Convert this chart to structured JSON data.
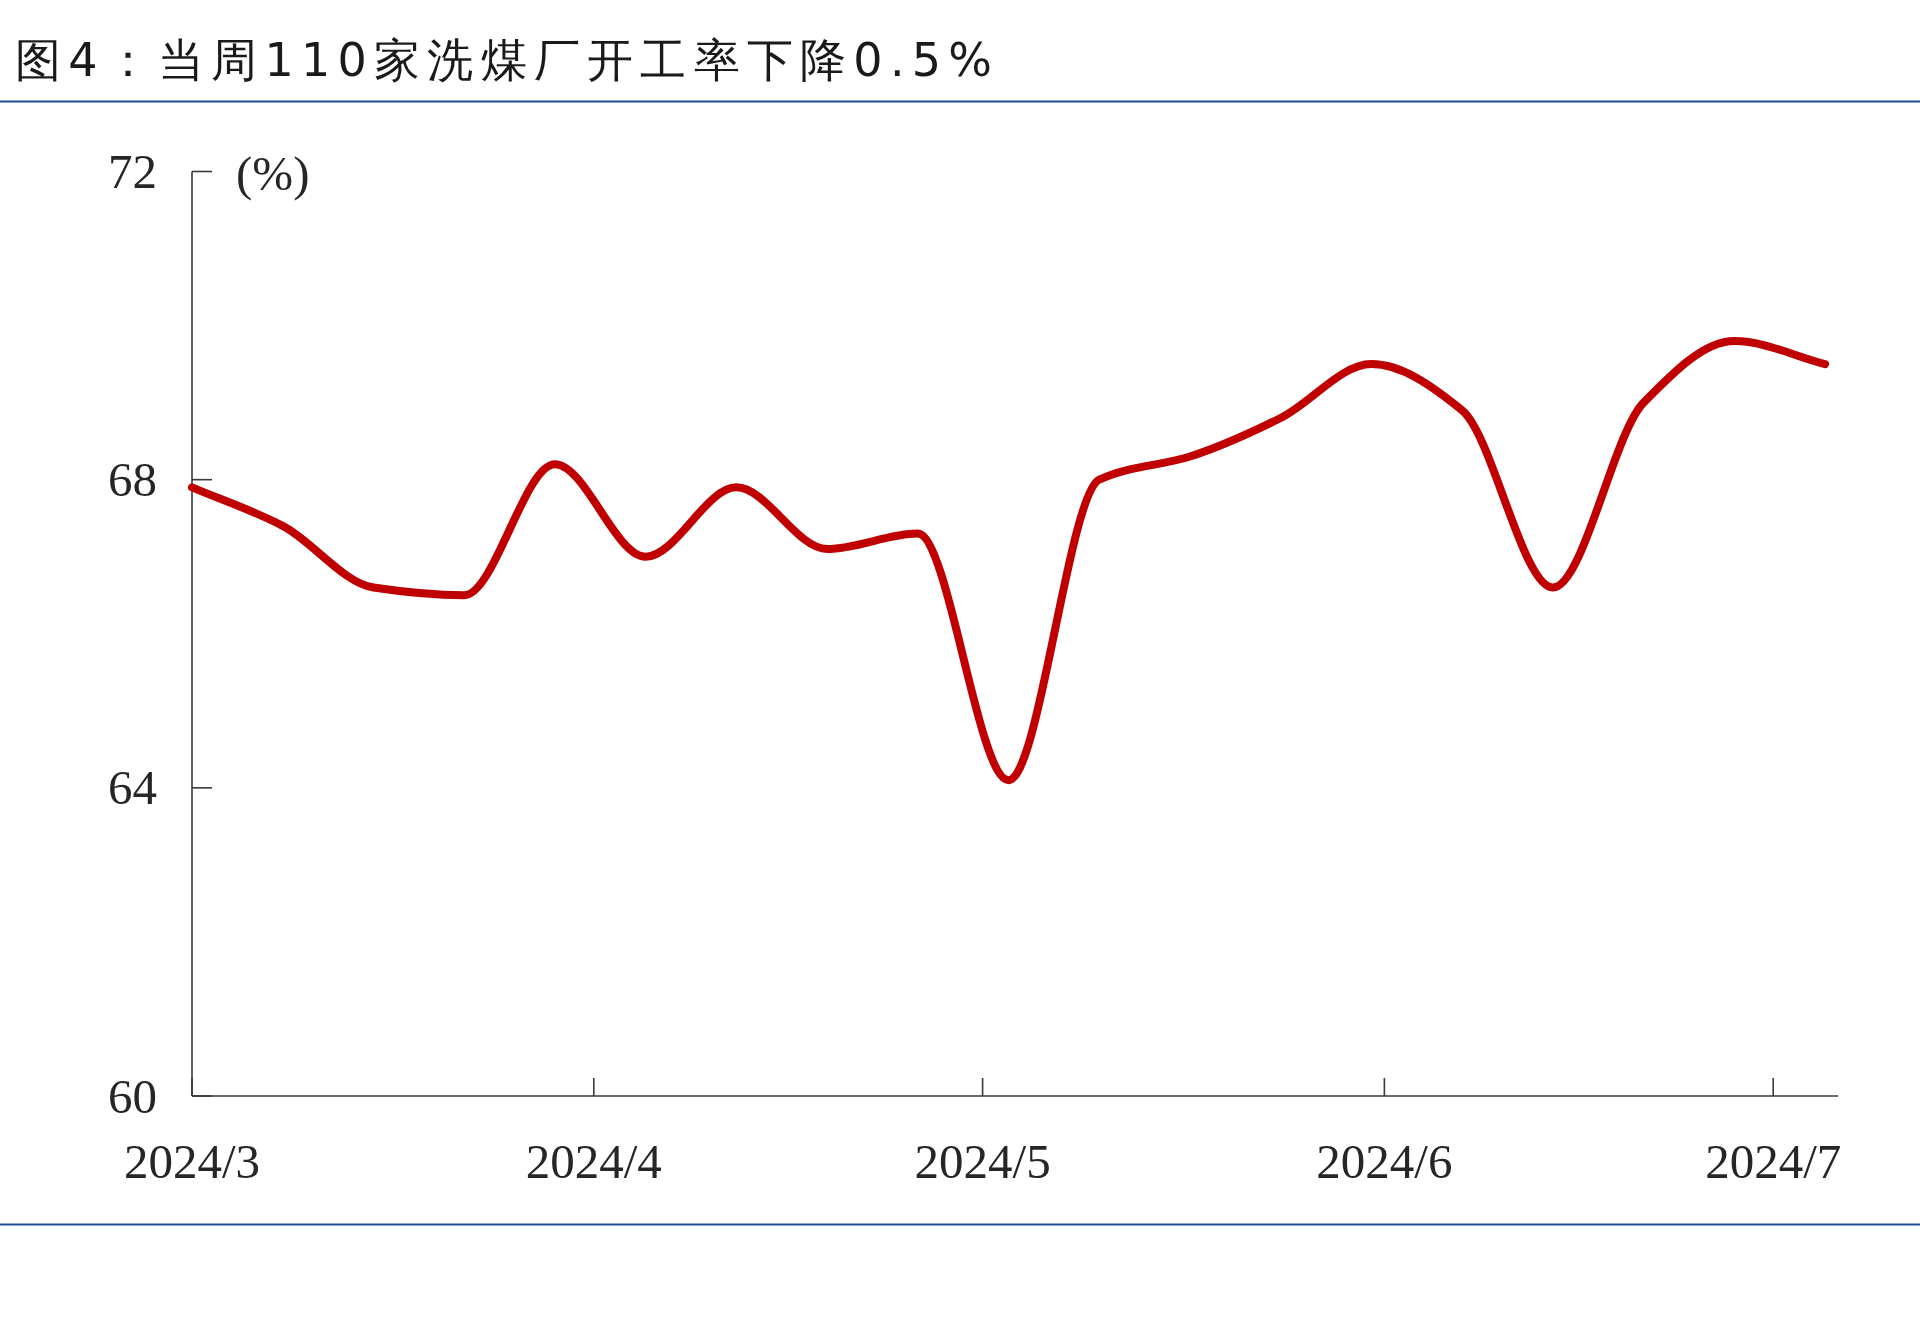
{
  "chart_data": {
    "type": "line",
    "title": "图4：当周110家洗煤厂开工率下降0.5%",
    "ylabel": "(%)",
    "x": [
      "2024-03-01",
      "2024-03-08",
      "2024-03-15",
      "2024-03-22",
      "2024-03-29",
      "2024-04-05",
      "2024-04-12",
      "2024-04-19",
      "2024-04-26",
      "2024-05-03",
      "2024-05-10",
      "2024-05-17",
      "2024-05-24",
      "2024-05-31",
      "2024-06-07",
      "2024-06-14",
      "2024-06-21",
      "2024-06-28",
      "2024-07-05"
    ],
    "series": [
      {
        "color": "#c00000",
        "values": [
          67.9,
          67.4,
          66.6,
          66.5,
          68.2,
          67.0,
          67.9,
          67.1,
          67.3,
          64.1,
          68.0,
          68.3,
          68.8,
          69.5,
          68.9,
          66.6,
          69.0,
          69.8,
          69.5
        ]
      }
    ],
    "xlim": [
      "2024-03-01",
      "2024-07-06"
    ],
    "xticks": [
      {
        "value": "2024-03-01",
        "label": "2024/3"
      },
      {
        "value": "2024-04-01",
        "label": "2024/4"
      },
      {
        "value": "2024-05-01",
        "label": "2024/5"
      },
      {
        "value": "2024-06-01",
        "label": "2024/6"
      },
      {
        "value": "2024-07-01",
        "label": "2024/7"
      }
    ],
    "ylim": [
      60,
      72
    ],
    "yticks": [
      60,
      64,
      68,
      72
    ],
    "line_style": "solid"
  }
}
